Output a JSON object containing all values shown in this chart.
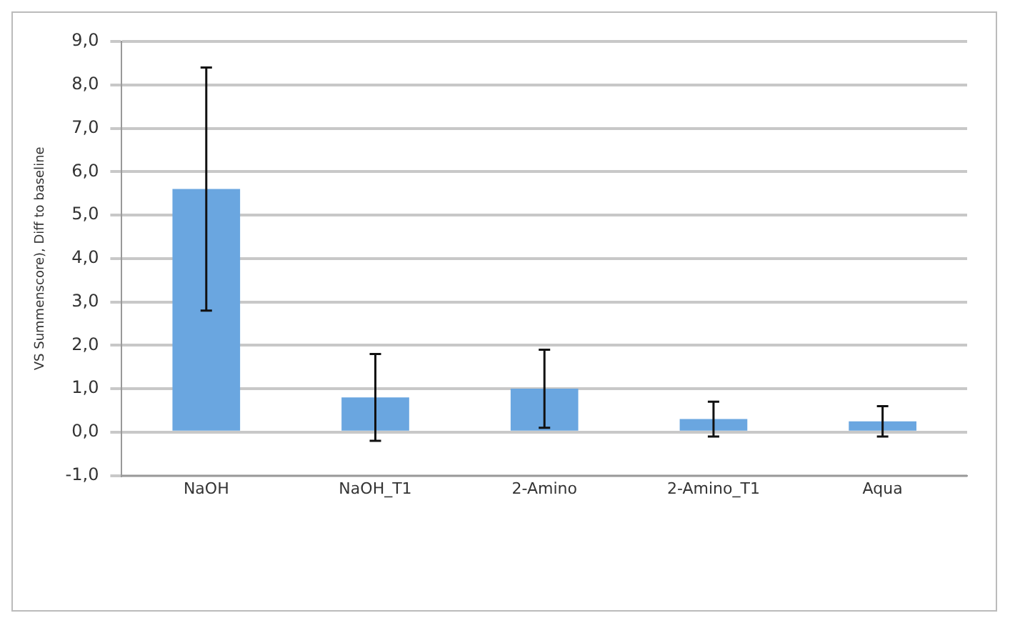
{
  "chart_data": {
    "type": "bar",
    "ylabel": "VS Summenscore), Diff to baseline",
    "categories": [
      "NaOH",
      "NaOH_T1",
      "2-Amino",
      "2-Amino_T1",
      "Aqua"
    ],
    "values": [
      5.6,
      0.8,
      1.0,
      0.3,
      0.25
    ],
    "errors": [
      2.8,
      1.0,
      0.9,
      0.4,
      0.35
    ],
    "color": "#6aa6e0",
    "ylim": [
      -1,
      9
    ],
    "yticks": [
      {
        "value": -1,
        "label": "-1,0"
      },
      {
        "value": 0,
        "label": "0,0"
      },
      {
        "value": 1,
        "label": "1,0"
      },
      {
        "value": 2,
        "label": "2,0"
      },
      {
        "value": 3,
        "label": "3,0"
      },
      {
        "value": 4,
        "label": "4,0"
      },
      {
        "value": 5,
        "label": "5,0"
      },
      {
        "value": 6,
        "label": "6,0"
      },
      {
        "value": 7,
        "label": "7,0"
      },
      {
        "value": 8,
        "label": "8,0"
      },
      {
        "value": 9,
        "label": "9,0"
      }
    ],
    "grid": "y"
  }
}
